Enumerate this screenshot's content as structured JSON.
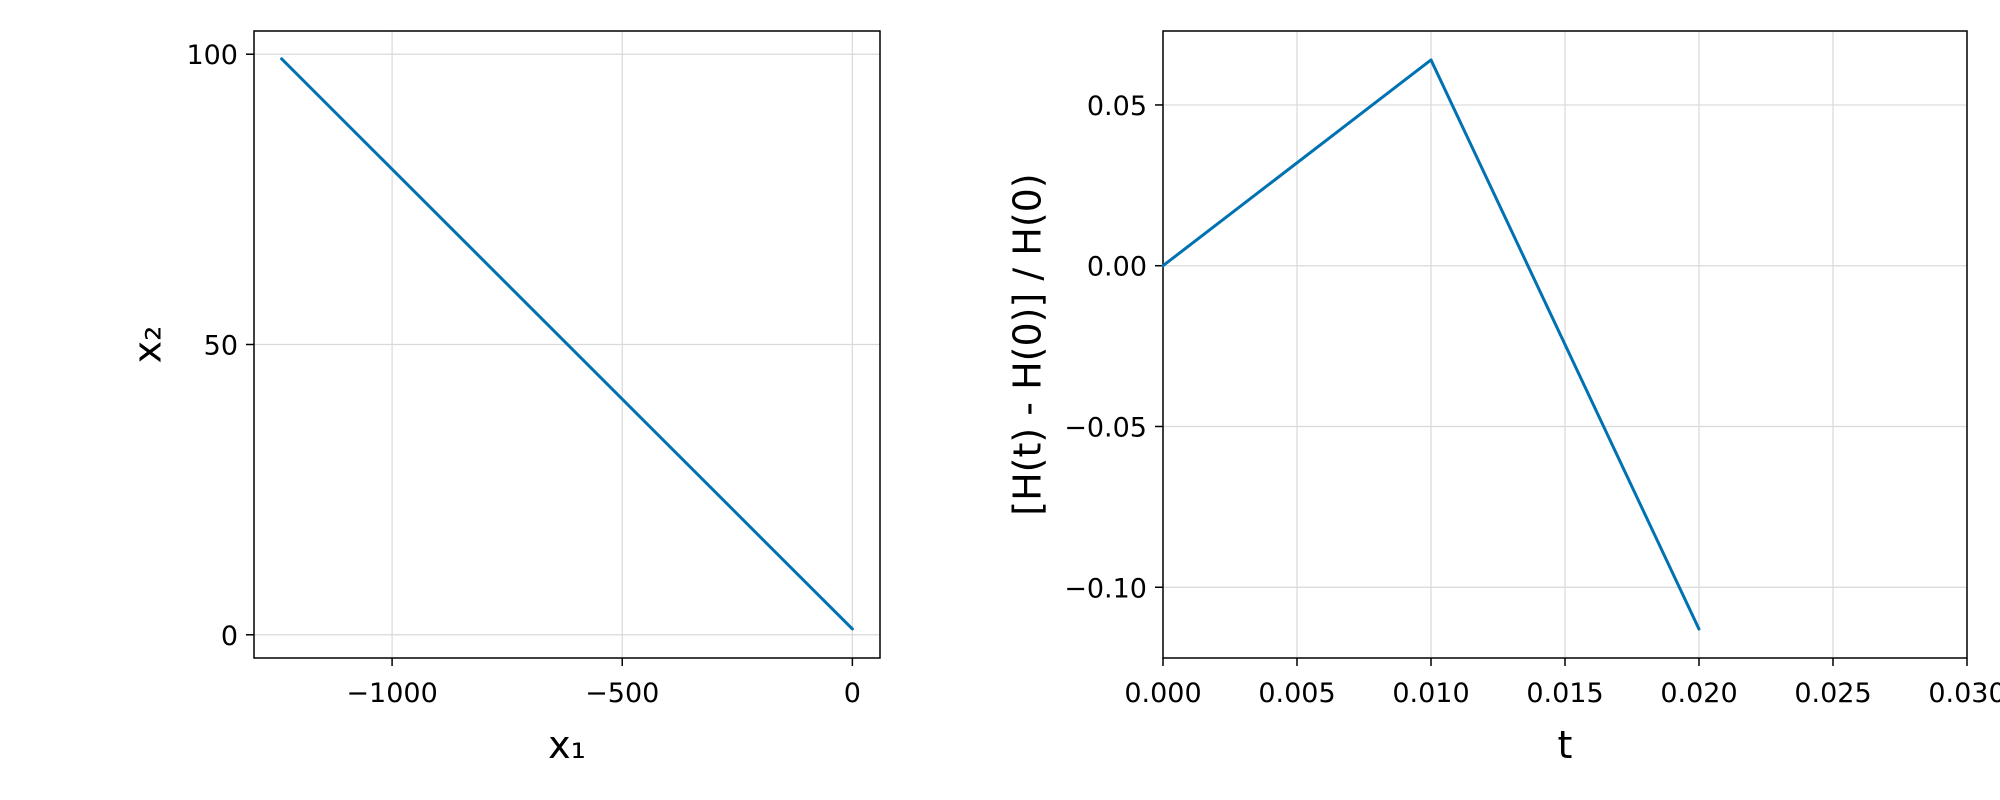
{
  "chart_data": [
    {
      "type": "line",
      "title": "",
      "xlabel": "x₁",
      "ylabel": "x₂",
      "xlim": [
        -1300,
        60
      ],
      "ylim": [
        -4,
        104
      ],
      "xticks": [
        -1000,
        -500,
        0
      ],
      "yticks": [
        0,
        50,
        100
      ],
      "xtick_labels": [
        "−1000",
        "−500",
        "0"
      ],
      "ytick_labels": [
        "0",
        "50",
        "100"
      ],
      "grid": true,
      "legend": "none",
      "colors": {
        "line": "#0072b2",
        "grid": "#d9d9d9"
      },
      "series": [
        {
          "x": [
            -1240,
            0
          ],
          "y": [
            99.2,
            1.0
          ]
        }
      ]
    },
    {
      "type": "line",
      "title": "",
      "xlabel": "t",
      "ylabel": "[H(t) - H(0)] / H(0)",
      "xlim": [
        0,
        0.03
      ],
      "ylim": [
        -0.122,
        0.073
      ],
      "xticks": [
        0,
        0.005,
        0.01,
        0.015,
        0.02,
        0.025,
        0.03
      ],
      "yticks": [
        -0.1,
        -0.05,
        0,
        0.05
      ],
      "xtick_labels": [
        "0.000",
        "0.005",
        "0.010",
        "0.015",
        "0.020",
        "0.025",
        "0.030"
      ],
      "ytick_labels": [
        "−0.10",
        "−0.05",
        "0.00",
        "0.05"
      ],
      "grid": true,
      "legend": "none",
      "colors": {
        "line": "#0072b2",
        "grid": "#d9d9d9"
      },
      "series": [
        {
          "x": [
            0,
            0.01,
            0.02
          ],
          "y": [
            0.0,
            0.064,
            -0.113
          ]
        }
      ]
    }
  ]
}
